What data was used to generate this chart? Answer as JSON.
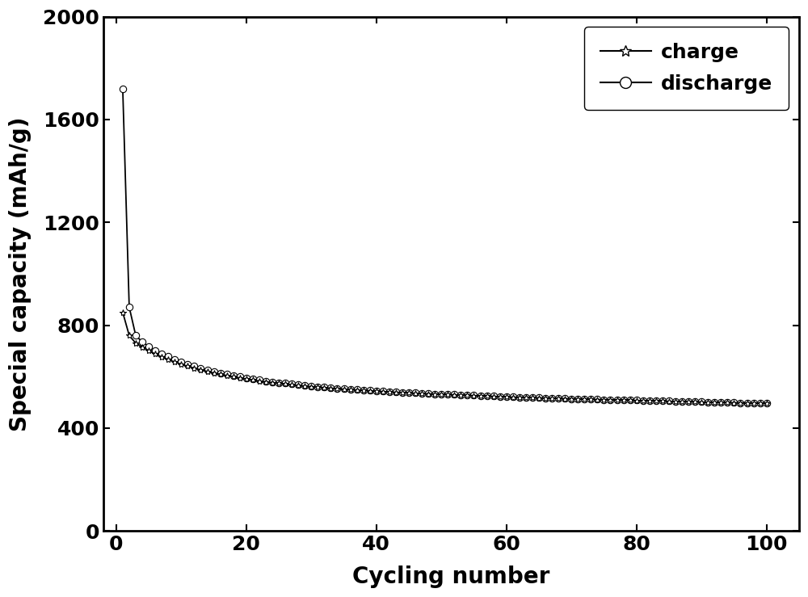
{
  "xlabel": "Cycling number",
  "ylabel": "Special capacity (mAh/g)",
  "xlim": [
    -2,
    105
  ],
  "ylim": [
    0,
    2000
  ],
  "xticks": [
    0,
    20,
    40,
    60,
    80,
    100
  ],
  "yticks": [
    0,
    400,
    800,
    1200,
    1600,
    2000
  ],
  "legend_labels": [
    "charge",
    "discharge"
  ],
  "line_color": "#000000",
  "background_color": "#ffffff",
  "label_fontsize": 20,
  "tick_fontsize": 18,
  "legend_fontsize": 18,
  "charge_x": [
    1,
    2,
    3,
    4,
    5,
    6,
    7,
    8,
    9,
    10,
    11,
    12,
    13,
    14,
    15,
    16,
    17,
    18,
    19,
    20,
    21,
    22,
    23,
    24,
    25,
    26,
    27,
    28,
    29,
    30,
    31,
    32,
    33,
    34,
    35,
    36,
    37,
    38,
    39,
    40,
    41,
    42,
    43,
    44,
    45,
    46,
    47,
    48,
    49,
    50,
    51,
    52,
    53,
    54,
    55,
    56,
    57,
    58,
    59,
    60,
    61,
    62,
    63,
    64,
    65,
    66,
    67,
    68,
    69,
    70,
    71,
    72,
    73,
    74,
    75,
    76,
    77,
    78,
    79,
    80,
    81,
    82,
    83,
    84,
    85,
    86,
    87,
    88,
    89,
    90,
    91,
    92,
    93,
    94,
    95,
    96,
    97,
    98,
    99,
    100
  ],
  "charge_y": [
    850,
    760,
    730,
    715,
    700,
    688,
    676,
    666,
    657,
    648,
    640,
    633,
    626,
    620,
    614,
    609,
    604,
    599,
    595,
    591,
    587,
    583,
    580,
    577,
    574,
    571,
    568,
    566,
    563,
    561,
    559,
    557,
    555,
    553,
    551,
    549,
    548,
    546,
    545,
    543,
    542,
    540,
    539,
    538,
    537,
    535,
    534,
    533,
    532,
    531,
    530,
    529,
    528,
    527,
    526,
    525,
    524,
    523,
    522,
    521,
    520,
    520,
    519,
    518,
    517,
    517,
    516,
    515,
    514,
    514,
    513,
    512,
    512,
    511,
    510,
    510,
    509,
    508,
    508,
    507,
    506,
    506,
    505,
    505,
    504,
    503,
    503,
    502,
    502,
    501,
    500,
    500,
    499,
    499,
    498,
    498,
    497,
    497,
    496,
    496
  ],
  "discharge_x": [
    1,
    2,
    3,
    4,
    5,
    6,
    7,
    8,
    9,
    10,
    11,
    12,
    13,
    14,
    15,
    16,
    17,
    18,
    19,
    20,
    21,
    22,
    23,
    24,
    25,
    26,
    27,
    28,
    29,
    30,
    31,
    32,
    33,
    34,
    35,
    36,
    37,
    38,
    39,
    40,
    41,
    42,
    43,
    44,
    45,
    46,
    47,
    48,
    49,
    50,
    51,
    52,
    53,
    54,
    55,
    56,
    57,
    58,
    59,
    60,
    61,
    62,
    63,
    64,
    65,
    66,
    67,
    68,
    69,
    70,
    71,
    72,
    73,
    74,
    75,
    76,
    77,
    78,
    79,
    80,
    81,
    82,
    83,
    84,
    85,
    86,
    87,
    88,
    89,
    90,
    91,
    92,
    93,
    94,
    95,
    96,
    97,
    98,
    99,
    100
  ],
  "discharge_y": [
    1720,
    870,
    760,
    735,
    717,
    702,
    689,
    678,
    667,
    657,
    648,
    640,
    633,
    626,
    620,
    614,
    609,
    604,
    599,
    595,
    591,
    587,
    583,
    580,
    577,
    574,
    571,
    568,
    566,
    563,
    561,
    559,
    557,
    555,
    553,
    551,
    549,
    548,
    546,
    545,
    543,
    542,
    540,
    539,
    538,
    537,
    535,
    534,
    533,
    532,
    531,
    530,
    529,
    528,
    527,
    526,
    525,
    524,
    523,
    522,
    521,
    520,
    520,
    519,
    518,
    517,
    517,
    516,
    515,
    514,
    514,
    513,
    512,
    512,
    511,
    510,
    510,
    509,
    508,
    508,
    507,
    506,
    506,
    505,
    505,
    504,
    503,
    503,
    502,
    502,
    501,
    500,
    500,
    499,
    499,
    498,
    498,
    497,
    497,
    496
  ]
}
